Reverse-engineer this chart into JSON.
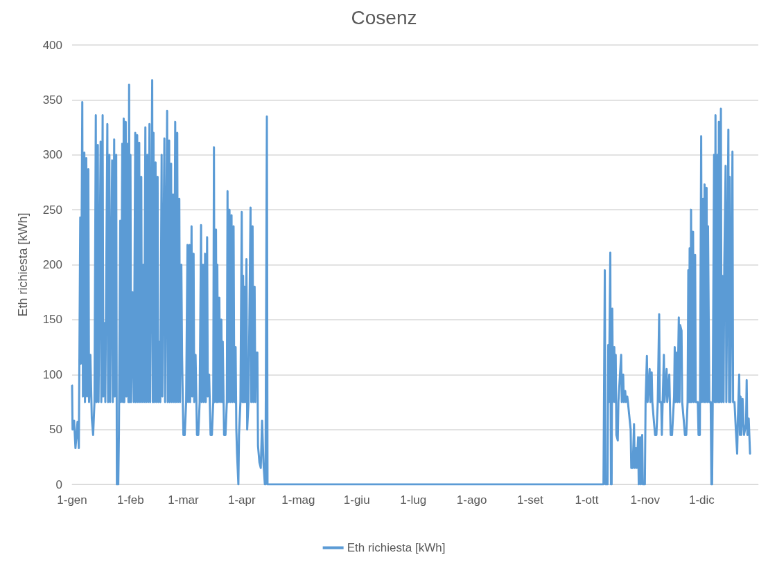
{
  "chart_data": {
    "type": "line",
    "title": "Cosenz",
    "ylabel": "Eth richiesta [kWh]",
    "x": [
      "--01-01T00:00",
      "--01-01T06:00",
      "--01-02T02:00",
      "--01-02T19:00",
      "--01-03T21:00",
      "--01-04T14:00",
      "--01-05T08:00",
      "--01-05T16:00",
      "--01-06T10:00",
      "--01-06T18:00",
      "--01-07T12:00",
      "--01-07T20:00",
      "--01-08T13:00",
      "--01-08T22:00",
      "--01-09T15:00",
      "--01-10T00:00",
      "--01-10T17:00",
      "--01-11T11:00",
      "--01-12T04:00",
      "--01-12T21:00",
      "--01-13T14:00",
      "--01-13T23:00",
      "--01-14T16:00",
      "--01-15T01:00",
      "--01-16T03:00",
      "--01-16T12:00",
      "--01-17T05:00",
      "--01-17T13:00",
      "--01-18T07:00",
      "--01-18T15:00",
      "--01-19T17:00",
      "--01-20T02:00",
      "--01-20T19:00",
      "--01-21T04:00",
      "--01-22T06:00",
      "--01-22T14:00",
      "--01-23T08:00",
      "--01-23T16:00",
      "--01-24T10:00",
      "--01-24T18:00",
      "--01-25T12:00",
      "--01-25T20:00",
      "--01-26T13:00",
      "--01-26T22:00",
      "--01-27T15:00",
      "--01-28T00:00",
      "--01-28T09:00",
      "--01-28T17:00",
      "--01-29T11:00",
      "--01-29T19:00",
      "--01-30T12:00",
      "--01-30T21:00",
      "--01-31T06:00",
      "--01-31T14:00",
      "--01-31T23:00",
      "--02-01T08:00",
      "--02-02T01:00",
      "--02-02T18:00",
      "--02-03T12:00",
      "--02-03T20:00",
      "--02-04T13:00",
      "--02-04T22:00",
      "--02-05T15:00",
      "--02-06T00:00",
      "--02-06T17:00",
      "--02-07T02:00",
      "--02-07T19:00",
      "--02-08T04:00",
      "--02-08T21:00",
      "--02-09T06:00",
      "--02-09T23:00",
      "--02-10T08:00",
      "--02-11T01:00",
      "--02-11T10:00",
      "--02-12T12:00",
      "--02-12T20:00",
      "--02-13T05:00",
      "--02-13T13:00",
      "--02-14T07:00",
      "--02-14T15:00",
      "--02-15T09:00",
      "--02-15T17:00",
      "--02-16T02:00",
      "--02-16T19:00",
      "--02-17T12:00",
      "--02-17T21:00",
      "--02-18T23:00",
      "--02-19T08:00",
      "--02-20T10:00",
      "--02-20T18:00",
      "--02-21T12:00",
      "--02-21T20:00",
      "--02-22T13:00",
      "--02-22T22:00",
      "--02-23T15:00",
      "--02-24T00:00",
      "--02-24T17:00",
      "--02-25T02:00",
      "--02-25T19:00",
      "--02-26T04:00",
      "--02-26T21:00",
      "--02-27T06:00",
      "--02-27T23:00",
      "--02-28T08:00",
      "--03-01T01:00",
      "--03-01T18:00",
      "--03-02T12:00",
      "--03-03T05:00",
      "--03-03T13:00",
      "--03-04T07:00",
      "--03-04T15:00",
      "--03-05T09:00",
      "--03-05T17:00",
      "--03-06T11:00",
      "--03-06T19:00",
      "--03-07T12:00",
      "--03-08T06:00",
      "--03-08T23:00",
      "--03-09T16:00",
      "--03-10T10:00",
      "--03-10T18:00",
      "--03-11T12:00",
      "--03-11T20:00",
      "--03-12T13:00",
      "--03-12T22:00",
      "--03-13T15:00",
      "--03-14T00:00",
      "--03-14T17:00",
      "--03-15T11:00",
      "--03-16T04:00",
      "--03-16T21:00",
      "--03-17T06:00",
      "--03-17T14:00",
      "--03-18T08:00",
      "--03-18T16:00",
      "--03-19T01:00",
      "--03-19T10:00",
      "--03-20T03:00",
      "--03-20T12:00",
      "--03-21T05:00",
      "--03-21T13:00",
      "--03-21T22:00",
      "--03-22T15:00",
      "--03-23T09:00",
      "--03-24T02:00",
      "--03-24T11:00",
      "--03-24T19:00",
      "--03-25T12:00",
      "--03-25T21:00",
      "--03-26T14:00",
      "--03-26T23:00",
      "--03-27T16:00",
      "--03-28T01:00",
      "--03-28T18:00",
      "--03-29T03:00",
      "--03-29T12:00",
      "--03-30T05:00",
      "--03-30T13:00",
      "--03-31T07:00",
      "--04-01T00:00",
      "--04-01T09:00",
      "--04-01T17:00",
      "--04-02T02:00",
      "--04-02T11:00",
      "--04-02T19:00",
      "--04-03T12:00",
      "--04-03T21:00",
      "--04-04T14:00",
      "--04-05T16:00",
      "--04-06T01:00",
      "--04-06T18:00",
      "--04-07T03:00",
      "--04-07T20:00",
      "--04-08T05:00",
      "--04-08T13:00",
      "--04-09T07:00",
      "--04-09T15:00",
      "--04-10T09:00",
      "--04-11T02:00",
      "--04-11T19:00",
      "--04-12T12:00",
      "--04-13T06:00",
      "--04-13T14:00",
      "--04-14T08:00",
      "--04-14T16:00",
      "--10-09T12:00",
      "--10-09T21:00",
      "--10-10T14:00",
      "--10-10T23:00",
      "--10-12T01:00",
      "--10-12T10:00",
      "--10-12T18:00",
      "--10-13T12:00",
      "--10-13T20:00",
      "--10-14T05:00",
      "--10-14T13:00",
      "--10-14T22:00",
      "--10-15T15:00",
      "--10-16T00:00",
      "--10-16T09:00",
      "--10-16T17:00",
      "--10-17T11:00",
      "--10-17T19:00",
      "--10-19T06:00",
      "--10-19T14:00",
      "--10-20T08:00",
      "--10-20T16:00",
      "--10-21T10:00",
      "--10-21T18:00",
      "--10-22T12:00",
      "--10-22T20:00",
      "--10-24T07:00",
      "--10-24T15:00",
      "--10-25T09:00",
      "--10-26T02:00",
      "--10-26T11:00",
      "--10-27T04:00",
      "--10-27T12:00",
      "--10-28T06:00",
      "--10-28T14:00",
      "--10-29T08:00",
      "--10-29T16:00",
      "--10-30T10:00",
      "--10-30T18:00",
      "--10-31T20:00",
      "--11-01T05:00",
      "--11-01T22:00",
      "--11-02T07:00",
      "--11-03T09:00",
      "--11-03T17:00",
      "--11-04T11:00",
      "--11-04T19:00",
      "--11-05T12:00",
      "--11-06T06:00",
      "--11-06T23:00",
      "--11-07T16:00",
      "--11-08T10:00",
      "--11-08T18:00",
      "--11-09T12:00",
      "--11-09T20:00",
      "--11-10T22:00",
      "--11-11T07:00",
      "--11-12T09:00",
      "--11-12T17:00",
      "--11-13T19:00",
      "--11-14T12:00",
      "--11-15T06:00",
      "--11-16T08:00",
      "--11-16T16:00",
      "--11-17T01:00",
      "--11-17T18:00",
      "--11-18T03:00",
      "--11-18T20:00",
      "--11-19T05:00",
      "--11-19T13:00",
      "--11-20T07:00",
      "--11-20T15:00",
      "--11-21T09:00",
      "--11-22T02:00",
      "--11-22T19:00",
      "--11-23T12:00",
      "--11-23T21:00",
      "--11-24T06:00",
      "--11-24T14:00",
      "--11-24T23:00",
      "--11-25T08:00",
      "--11-25T16:00",
      "--11-26T10:00",
      "--11-26T18:00",
      "--11-27T12:00",
      "--11-27T20:00",
      "--11-28T22:00",
      "--11-29T07:00",
      "--11-30T00:00",
      "--11-30T17:00",
      "--12-01T02:00",
      "--12-01T19:00",
      "--12-02T04:00",
      "--12-02T12:00",
      "--12-02T21:00",
      "--12-03T14:00",
      "--12-03T23:00",
      "--12-04T08:00",
      "--12-05T01:00",
      "--12-05T18:00",
      "--12-06T03:00",
      "--12-06T12:00",
      "--12-06T20:00",
      "--12-07T13:00",
      "--12-07T22:00",
      "--12-08T07:00",
      "--12-08T15:00",
      "--12-09T09:00",
      "--12-09T17:00",
      "--12-10T02:00",
      "--12-10T11:00",
      "--12-11T04:00",
      "--12-11T12:00",
      "--12-11T21:00",
      "--12-12T14:00",
      "--12-12T23:00",
      "--12-13T16:00",
      "--12-14T01:00",
      "--12-15T03:00",
      "--12-15T12:00",
      "--12-15T20:00",
      "--12-16T05:00",
      "--12-17T07:00",
      "--12-17T15:00",
      "--12-18T09:00",
      "--12-19T02:00",
      "--12-19T19:00",
      "--12-20T04:00",
      "--12-20T21:00",
      "--12-21T06:00",
      "--12-21T14:00",
      "--12-21T23:00",
      "--12-22T16:00",
      "--12-23T10:00",
      "--12-24T12:00",
      "--12-24T20:00",
      "--12-25T05:00",
      "--12-25T22:00",
      "--12-26T15:00"
    ],
    "series": [
      {
        "name": "Eth richiesta [kWh]",
        "color": "#5b9bd5",
        "values": [
          90,
          50,
          58,
          33,
          57,
          33,
          243,
          110,
          348,
          80,
          302,
          75,
          297,
          80,
          287,
          75,
          118,
          60,
          45,
          75,
          336,
          75,
          309,
          75,
          312,
          75,
          336,
          80,
          147,
          75,
          328,
          75,
          300,
          75,
          295,
          75,
          314,
          80,
          300,
          0,
          0,
          45,
          240,
          75,
          310,
          75,
          333,
          75,
          330,
          80,
          310,
          75,
          364,
          75,
          300,
          75,
          175,
          75,
          320,
          75,
          318,
          75,
          311,
          75,
          280,
          75,
          200,
          75,
          325,
          75,
          300,
          75,
          328,
          75,
          368,
          75,
          320,
          75,
          293,
          75,
          280,
          75,
          130,
          75,
          300,
          80,
          315,
          75,
          340,
          75,
          313,
          75,
          292,
          75,
          264,
          75,
          330,
          75,
          320,
          75,
          260,
          75,
          200,
          118,
          45,
          45,
          75,
          218,
          75,
          218,
          75,
          235,
          80,
          210,
          75,
          118,
          45,
          45,
          75,
          236,
          75,
          200,
          75,
          210,
          75,
          225,
          80,
          100,
          45,
          45,
          75,
          307,
          75,
          232,
          75,
          200,
          75,
          170,
          75,
          150,
          75,
          130,
          45,
          45,
          75,
          267,
          75,
          250,
          75,
          245,
          75,
          235,
          75,
          125,
          50,
          28,
          0,
          45,
          75,
          248,
          75,
          190,
          75,
          180,
          75,
          205,
          50,
          75,
          252,
          75,
          235,
          75,
          180,
          75,
          120,
          120,
          35,
          20,
          15,
          58,
          20,
          0,
          0,
          335,
          0,
          0,
          0,
          195,
          0,
          0,
          127,
          75,
          211,
          0,
          0,
          160,
          75,
          125,
          75,
          118,
          45,
          40,
          75,
          118,
          75,
          100,
          75,
          85,
          75,
          80,
          75,
          50,
          15,
          15,
          55,
          15,
          33,
          15,
          43,
          0,
          43,
          0,
          45,
          0,
          0,
          75,
          117,
          75,
          105,
          75,
          102,
          75,
          60,
          45,
          45,
          75,
          155,
          75,
          75,
          45,
          118,
          75,
          105,
          75,
          100,
          45,
          45,
          80,
          125,
          75,
          120,
          75,
          152,
          75,
          145,
          140,
          75,
          60,
          45,
          45,
          75,
          195,
          75,
          215,
          75,
          250,
          75,
          230,
          75,
          209,
          75,
          75,
          45,
          45,
          317,
          75,
          260,
          75,
          273,
          75,
          270,
          75,
          235,
          75,
          75,
          0,
          0,
          75,
          300,
          75,
          336,
          75,
          300,
          75,
          330,
          75,
          342,
          75,
          190,
          75,
          200,
          290,
          75,
          323,
          75,
          280,
          75,
          303,
          75,
          75,
          50,
          28,
          60,
          100,
          45,
          80,
          45,
          78,
          45,
          55,
          95,
          45,
          60,
          28
        ]
      }
    ],
    "xlim": [
      "--01-01",
      "--12-31"
    ],
    "xticks": [
      {
        "value": "--01-01",
        "label": "1-gen"
      },
      {
        "value": "--02-01",
        "label": "1-feb"
      },
      {
        "value": "--03-01",
        "label": "1-mar"
      },
      {
        "value": "--04-01",
        "label": "1-apr"
      },
      {
        "value": "--05-01",
        "label": "1-mag"
      },
      {
        "value": "--06-01",
        "label": "1-giu"
      },
      {
        "value": "--07-01",
        "label": "1-lug"
      },
      {
        "value": "--08-01",
        "label": "1-ago"
      },
      {
        "value": "--09-01",
        "label": "1-set"
      },
      {
        "value": "--10-01",
        "label": "1-ott"
      },
      {
        "value": "--11-01",
        "label": "1-nov"
      },
      {
        "value": "--12-01",
        "label": "1-dic"
      }
    ],
    "ylim": [
      0,
      400
    ],
    "yticks": [
      0,
      50,
      100,
      150,
      200,
      250,
      300,
      350,
      400
    ],
    "grid": "y",
    "legend": "bottom",
    "marker": "none",
    "line_style": "solid"
  }
}
